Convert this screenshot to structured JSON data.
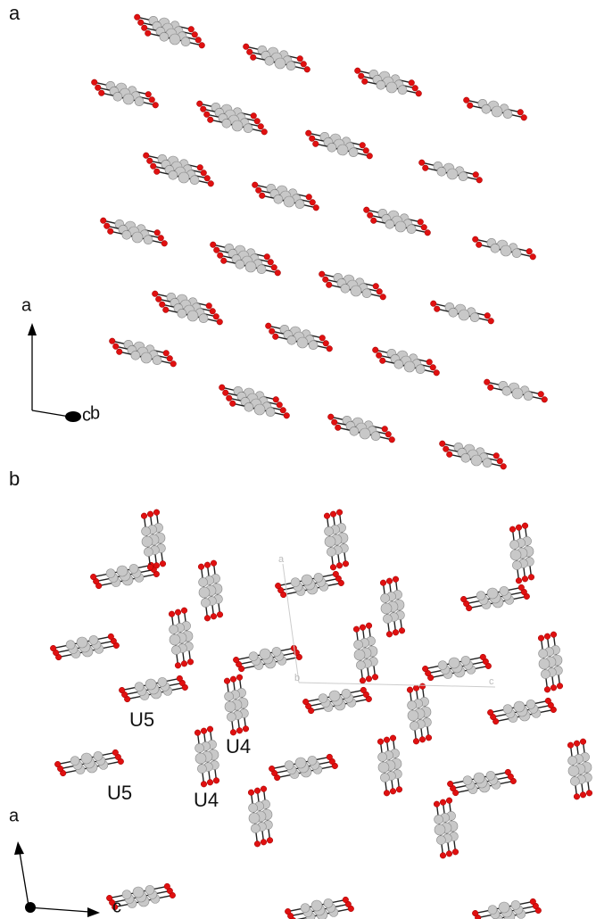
{
  "panels": [
    {
      "label": "a",
      "axes": {
        "vertical": "a",
        "horizontal": "c",
        "horizontal_second": "b"
      }
    },
    {
      "label": "b",
      "axes": {
        "vertical": "a",
        "horizontal": "c"
      },
      "cell_axes": {
        "a": "a",
        "b": "b",
        "c": "c"
      },
      "annotations": [
        "U5",
        "U4",
        "U5",
        "U4"
      ]
    }
  ]
}
